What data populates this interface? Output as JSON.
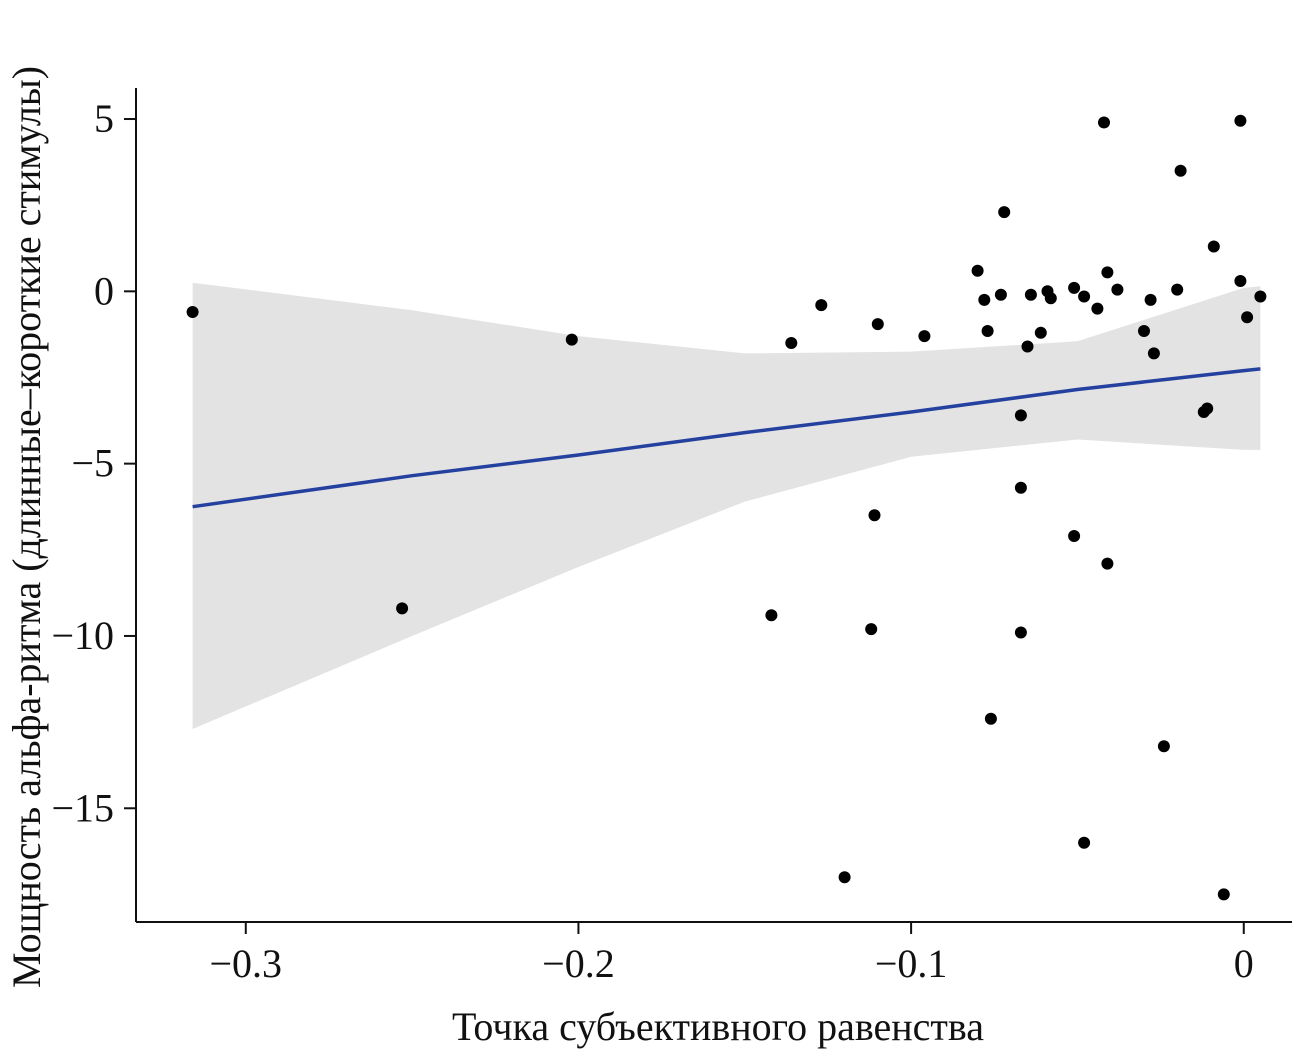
{
  "chart_data": {
    "type": "scatter",
    "title": "",
    "xlabel": "Точка субъективного равенства",
    "ylabel": "Мощность альфа-ритма (длинные–короткие стимулы)",
    "xlim": [
      -0.333,
      0.0145
    ],
    "ylim": [
      -18.3,
      5.9
    ],
    "x_ticks": [
      -0.3,
      -0.2,
      -0.1,
      0
    ],
    "x_tick_labels": [
      "−0.3",
      "−0.2",
      "−0.1",
      "0"
    ],
    "y_ticks": [
      5,
      0,
      -5,
      -10,
      -15
    ],
    "y_tick_labels": [
      "5",
      "0",
      "−5",
      "−10",
      "−15"
    ],
    "grid": false,
    "legend": "none",
    "series": [
      {
        "name": "observations",
        "color": "#000000",
        "points": [
          [
            -0.316,
            -0.6
          ],
          [
            -0.253,
            -9.2
          ],
          [
            -0.202,
            -1.4
          ],
          [
            -0.142,
            -9.4
          ],
          [
            -0.136,
            -1.5
          ],
          [
            -0.127,
            -0.4
          ],
          [
            -0.12,
            -17.0
          ],
          [
            -0.111,
            -6.5
          ],
          [
            -0.112,
            -9.8
          ],
          [
            -0.11,
            -0.95
          ],
          [
            -0.096,
            -1.3
          ],
          [
            -0.08,
            0.6
          ],
          [
            -0.078,
            -0.25
          ],
          [
            -0.077,
            -1.15
          ],
          [
            -0.076,
            -12.4
          ],
          [
            -0.073,
            -0.1
          ],
          [
            -0.072,
            2.3
          ],
          [
            -0.067,
            -3.6
          ],
          [
            -0.067,
            -5.7
          ],
          [
            -0.067,
            -9.9
          ],
          [
            -0.065,
            -1.6
          ],
          [
            -0.064,
            -0.1
          ],
          [
            -0.061,
            -1.2
          ],
          [
            -0.059,
            0.0
          ],
          [
            -0.058,
            -0.2
          ],
          [
            -0.051,
            0.1
          ],
          [
            -0.051,
            -7.1
          ],
          [
            -0.048,
            -0.15
          ],
          [
            -0.048,
            -16.0
          ],
          [
            -0.044,
            -0.5
          ],
          [
            -0.042,
            4.9
          ],
          [
            -0.041,
            0.55
          ],
          [
            -0.041,
            -7.9
          ],
          [
            -0.038,
            0.05
          ],
          [
            -0.03,
            -1.15
          ],
          [
            -0.028,
            -0.25
          ],
          [
            -0.027,
            -1.8
          ],
          [
            -0.024,
            -13.2
          ],
          [
            -0.02,
            0.05
          ],
          [
            -0.019,
            3.5
          ],
          [
            -0.012,
            -3.5
          ],
          [
            -0.011,
            -3.4
          ],
          [
            -0.009,
            1.3
          ],
          [
            -0.006,
            -17.5
          ],
          [
            -0.001,
            4.95
          ],
          [
            -0.001,
            0.3
          ],
          [
            0.001,
            -0.75
          ],
          [
            0.005,
            -0.15
          ]
        ]
      }
    ],
    "fit": {
      "name": "linear fit",
      "color": "#2441a0",
      "band_color": "#e3e3e3",
      "x": [
        -0.316,
        -0.25,
        -0.2,
        -0.15,
        -0.1,
        -0.05,
        0.0,
        0.005
      ],
      "y": [
        -6.25,
        -5.35,
        -4.75,
        -4.1,
        -3.5,
        -2.85,
        -2.3,
        -2.25
      ],
      "lower": [
        -12.7,
        -10.0,
        -8.0,
        -6.1,
        -4.8,
        -4.3,
        -4.6,
        -4.6
      ],
      "upper": [
        0.25,
        -0.55,
        -1.3,
        -1.8,
        -1.75,
        -1.45,
        0.1,
        0.15
      ]
    }
  }
}
